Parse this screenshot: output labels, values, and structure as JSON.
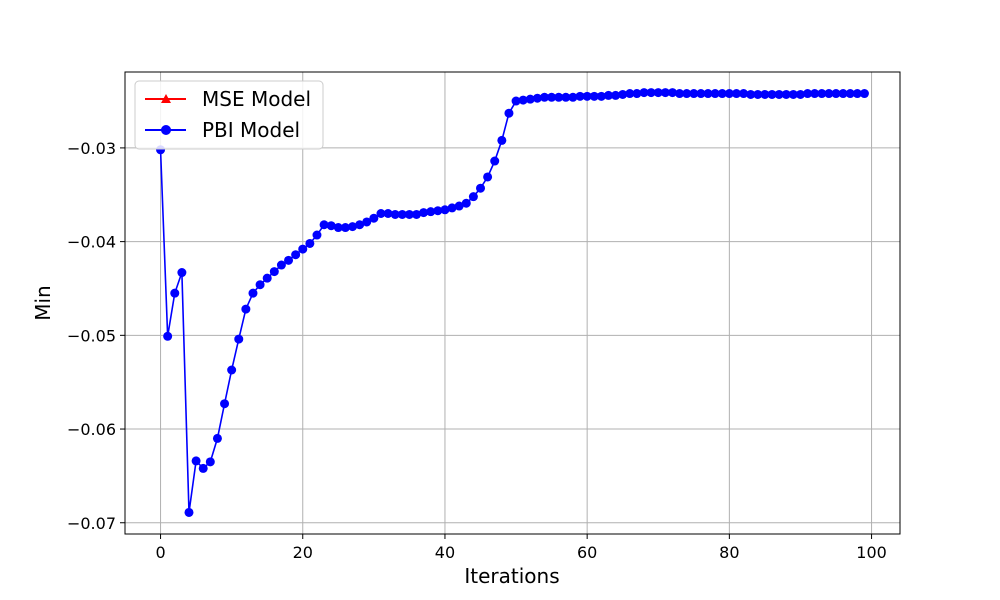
{
  "chart_data": {
    "type": "line",
    "title": "",
    "xlabel": "Iterations",
    "ylabel": "Min",
    "xlim": [
      -5,
      104
    ],
    "ylim": [
      -0.0712,
      -0.0219
    ],
    "x_ticks": [
      0,
      20,
      40,
      60,
      80,
      100
    ],
    "x_tick_labels": [
      "0",
      "20",
      "40",
      "60",
      "80",
      "100"
    ],
    "y_ticks": [
      -0.07,
      -0.06,
      -0.05,
      -0.04,
      -0.03
    ],
    "y_tick_labels": [
      "−0.07",
      "−0.06",
      "−0.05",
      "−0.04",
      "−0.03"
    ],
    "grid": true,
    "legend_position": "top-left",
    "series": [
      {
        "name": "MSE Model",
        "color": "#ff0000",
        "marker": "triangle",
        "x": [],
        "y": []
      },
      {
        "name": "PBI Model",
        "color": "#0000ff",
        "marker": "circle",
        "x": [
          0,
          1,
          2,
          3,
          4,
          5,
          6,
          7,
          8,
          9,
          10,
          11,
          12,
          13,
          14,
          15,
          16,
          17,
          18,
          19,
          20,
          21,
          22,
          23,
          24,
          25,
          26,
          27,
          28,
          29,
          30,
          31,
          32,
          33,
          34,
          35,
          36,
          37,
          38,
          39,
          40,
          41,
          42,
          43,
          44,
          45,
          46,
          47,
          48,
          49,
          50,
          51,
          52,
          53,
          54,
          55,
          56,
          57,
          58,
          59,
          60,
          61,
          62,
          63,
          64,
          65,
          66,
          67,
          68,
          69,
          70,
          71,
          72,
          73,
          74,
          75,
          76,
          77,
          78,
          79,
          80,
          81,
          82,
          83,
          84,
          85,
          86,
          87,
          88,
          89,
          90,
          91,
          92,
          93,
          94,
          95,
          96,
          97,
          98,
          99
        ],
        "y": [
          -0.0302,
          -0.0501,
          -0.0455,
          -0.0433,
          -0.0689,
          -0.0634,
          -0.0642,
          -0.0635,
          -0.061,
          -0.0573,
          -0.0537,
          -0.0504,
          -0.0472,
          -0.0455,
          -0.0446,
          -0.0439,
          -0.0432,
          -0.0425,
          -0.042,
          -0.0414,
          -0.0408,
          -0.0402,
          -0.0393,
          -0.0382,
          -0.0383,
          -0.0385,
          -0.0385,
          -0.0384,
          -0.0382,
          -0.0379,
          -0.0375,
          -0.037,
          -0.037,
          -0.0371,
          -0.0371,
          -0.0371,
          -0.0371,
          -0.0369,
          -0.0368,
          -0.0367,
          -0.0366,
          -0.0364,
          -0.0362,
          -0.0359,
          -0.0352,
          -0.0343,
          -0.0331,
          -0.0314,
          -0.0292,
          -0.0263,
          -0.025,
          -0.0249,
          -0.0248,
          -0.0247,
          -0.0246,
          -0.0246,
          -0.0246,
          -0.0246,
          -0.0246,
          -0.0245,
          -0.0245,
          -0.0245,
          -0.0245,
          -0.0244,
          -0.0244,
          -0.0243,
          -0.0242,
          -0.0242,
          -0.0241,
          -0.0241,
          -0.0241,
          -0.0241,
          -0.0241,
          -0.0242,
          -0.0242,
          -0.0242,
          -0.0242,
          -0.0242,
          -0.0242,
          -0.0242,
          -0.0242,
          -0.0242,
          -0.0242,
          -0.0243,
          -0.0243,
          -0.0243,
          -0.0243,
          -0.0243,
          -0.0243,
          -0.0243,
          -0.0243,
          -0.0242,
          -0.0242,
          -0.0242,
          -0.0242,
          -0.0242,
          -0.0242,
          -0.0242,
          -0.0242,
          -0.0242
        ]
      }
    ]
  }
}
